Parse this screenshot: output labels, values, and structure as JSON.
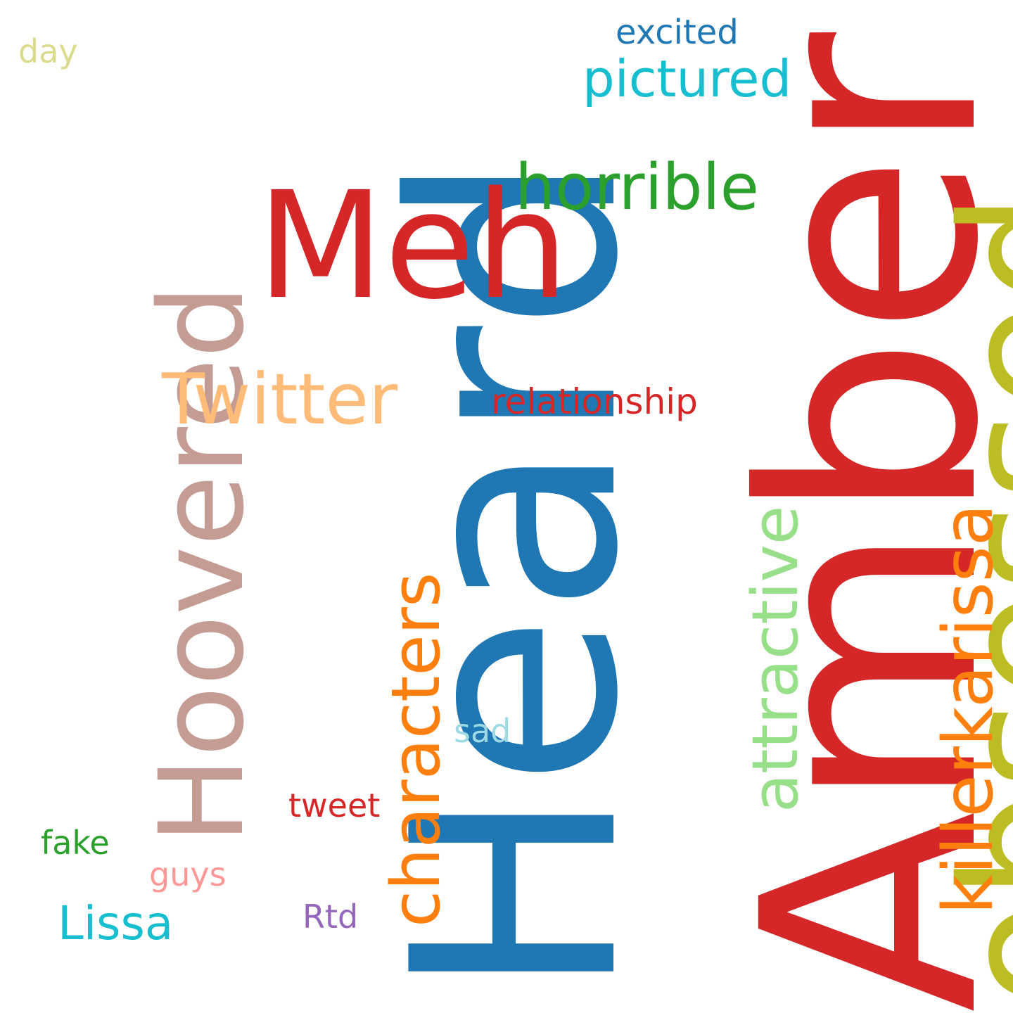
{
  "words": {
    "amber": {
      "text": "Amber",
      "color": "#d62728"
    },
    "heard": {
      "text": "Heard",
      "color": "#1f77b4"
    },
    "obsessed": {
      "text": "obsessed",
      "color": "#bcbd22"
    },
    "hoovered": {
      "text": "Hoovered",
      "color": "#c49c94"
    },
    "meh": {
      "text": "Meh",
      "color": "#d62728"
    },
    "twitter": {
      "text": "Twitter",
      "color": "#ffbb78"
    },
    "killerkarissa": {
      "text": "killerkarissa",
      "color": "#ff7f0e"
    },
    "characters": {
      "text": "characters",
      "color": "#ff7f0e"
    },
    "attractive": {
      "text": "attractive",
      "color": "#98df8a"
    },
    "horrible": {
      "text": "horrible",
      "color": "#2ca02c"
    },
    "pictured": {
      "text": "pictured",
      "color": "#17becf"
    },
    "lissa": {
      "text": "Lissa",
      "color": "#17becf"
    },
    "relationship": {
      "text": "relationship",
      "color": "#d62728"
    },
    "excited": {
      "text": "excited",
      "color": "#1f77b4"
    },
    "tweet": {
      "text": "tweet",
      "color": "#d62728"
    },
    "fake": {
      "text": "fake",
      "color": "#2ca02c"
    },
    "sad": {
      "text": "sad",
      "color": "#9edae5"
    },
    "guys": {
      "text": "guys",
      "color": "#ff9896"
    },
    "rtd": {
      "text": "Rtd",
      "color": "#9467bd"
    },
    "day": {
      "text": "day",
      "color": "#dbdb8d"
    }
  }
}
